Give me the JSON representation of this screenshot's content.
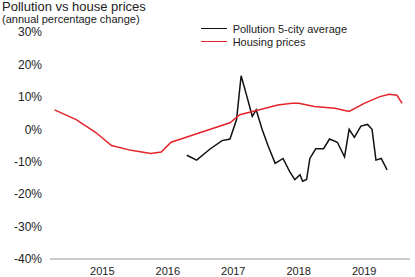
{
  "chart_data": {
    "type": "line",
    "title": "Pollution vs house prices",
    "subtitle": "(annual percentage change)",
    "legend": "top-right",
    "grid": false,
    "xlim": [
      2014.2,
      2019.7
    ],
    "xticks": [
      2015,
      2016,
      2017,
      2018,
      2019
    ],
    "ylim": [
      -40,
      30
    ],
    "yticks": [
      {
        "value": -40,
        "label": "-40%"
      },
      {
        "value": -30,
        "label": "-30%"
      },
      {
        "value": -20,
        "label": "-20%"
      },
      {
        "value": -10,
        "label": "-10%"
      },
      {
        "value": 0,
        "label": "0%"
      },
      {
        "value": 10,
        "label": "10%"
      },
      {
        "value": 20,
        "label": "20%"
      },
      {
        "value": 30,
        "label": "30%"
      }
    ],
    "series": [
      {
        "name": "Pollution 5-city average",
        "color": "#111111",
        "x": [
          2016.29,
          2016.44,
          2016.65,
          2016.83,
          2016.95,
          2017.05,
          2017.12,
          2017.21,
          2017.29,
          2017.35,
          2017.44,
          2017.53,
          2017.64,
          2017.76,
          2017.86,
          2017.94,
          2018.02,
          2018.06,
          2018.12,
          2018.17,
          2018.26,
          2018.38,
          2018.47,
          2018.59,
          2018.7,
          2018.77,
          2018.85,
          2018.95,
          2019.05,
          2019.12,
          2019.18,
          2019.26,
          2019.35
        ],
        "values": [
          -8,
          -9.5,
          -6,
          -3.5,
          -3,
          3,
          16.5,
          10,
          4,
          6,
          0,
          -5,
          -10.5,
          -9,
          -13,
          -15.5,
          -14,
          -16,
          -15.5,
          -9,
          -6,
          -6,
          -3,
          -4,
          -8.5,
          0,
          -2.5,
          1,
          1.5,
          0,
          -9.5,
          -9,
          -12.5
        ]
      },
      {
        "name": "Housing prices",
        "color": "#e3242b",
        "x": [
          2014.27,
          2014.6,
          2014.9,
          2015.14,
          2015.44,
          2015.74,
          2015.9,
          2016.05,
          2016.35,
          2016.65,
          2016.95,
          2017.1,
          2017.4,
          2017.68,
          2017.9,
          2018.0,
          2018.24,
          2018.55,
          2018.77,
          2019.0,
          2019.23,
          2019.38,
          2019.5,
          2019.58
        ],
        "values": [
          6,
          3,
          -1,
          -5,
          -6.5,
          -7.5,
          -7,
          -4,
          -2,
          0,
          2,
          4.5,
          6,
          7.5,
          8,
          8,
          7,
          6.5,
          5.5,
          8,
          10,
          10.8,
          10.5,
          8
        ]
      }
    ]
  }
}
